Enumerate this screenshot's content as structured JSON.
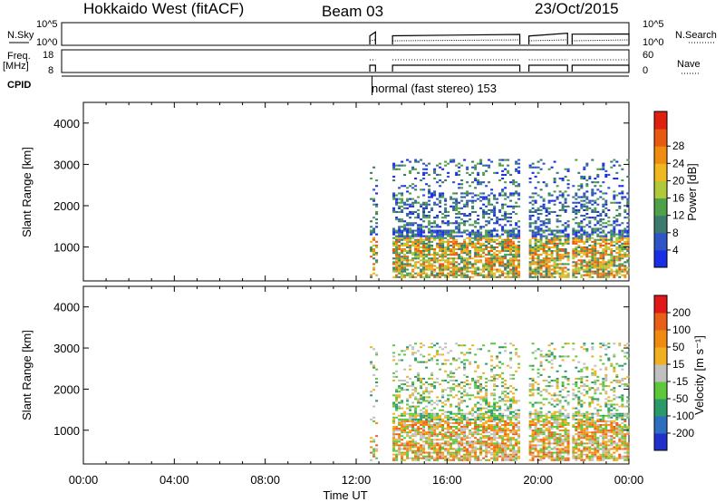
{
  "header": {
    "station": "Hokkaido West (fitACF)",
    "beam": "Beam 03",
    "date": "23/Oct/2015"
  },
  "status_panel": {
    "nsky_label": "N.Sky",
    "nsky_ticks": [
      "10^5",
      "10^0"
    ],
    "nsearch_label": "N.Search",
    "nsearch_ticks": [
      "10^5",
      "10^0"
    ],
    "freq_label": "Freq.",
    "freq_unit": "[MHz]",
    "freq_ticks": [
      "18",
      "8"
    ],
    "nave_label": "Nave",
    "nave_ticks": [
      "60",
      "0"
    ],
    "cpid_label": "CPID",
    "cpid_text": "normal (fast stereo) 153",
    "cpid_start_hour": 12.7
  },
  "chart_data": [
    {
      "type": "heatmap",
      "name": "power",
      "ylabel": "Slant Range [km]",
      "ylim": [
        180,
        4500
      ],
      "yticks": [
        "1000",
        "2000",
        "3000",
        "4000"
      ],
      "xlim": [
        0,
        24
      ],
      "colorbar": {
        "label": "Power [dB]",
        "ticks": [
          "4",
          "8",
          "12",
          "16",
          "20",
          "24",
          "28"
        ],
        "colors": [
          "#1a2ee6",
          "#2e54c8",
          "#3d7a6e",
          "#4fa04a",
          "#b0c83a",
          "#f0b820",
          "#f08c10",
          "#e85a10",
          "#e02010"
        ]
      },
      "observation_blocks_hours": [
        [
          12.6,
          12.85
        ],
        [
          13.6,
          19.2
        ],
        [
          19.6,
          21.3
        ],
        [
          21.5,
          24
        ]
      ]
    },
    {
      "type": "heatmap",
      "name": "velocity",
      "ylabel": "Slant Range [km]",
      "ylim": [
        180,
        4500
      ],
      "yticks": [
        "1000",
        "2000",
        "3000",
        "4000"
      ],
      "xlim": [
        0,
        24
      ],
      "xlabel": "Time UT",
      "xticks": [
        "00:00",
        "04:00",
        "08:00",
        "12:00",
        "16:00",
        "20:00",
        "00:00"
      ],
      "colorbar": {
        "label": "Velocity [m s⁻¹]",
        "ticks": [
          "200",
          "100",
          "50",
          "15",
          "-15",
          "-50",
          "-100",
          "-200"
        ],
        "colors": [
          "#2030c8",
          "#2e6ec0",
          "#2a9a6a",
          "#5cc83a",
          "#c0c0c0",
          "#f0b020",
          "#f08a10",
          "#e86018",
          "#e01818"
        ]
      },
      "observation_blocks_hours": [
        [
          12.6,
          12.85
        ],
        [
          13.6,
          19.2
        ],
        [
          19.6,
          21.3
        ],
        [
          21.5,
          24
        ]
      ]
    }
  ]
}
